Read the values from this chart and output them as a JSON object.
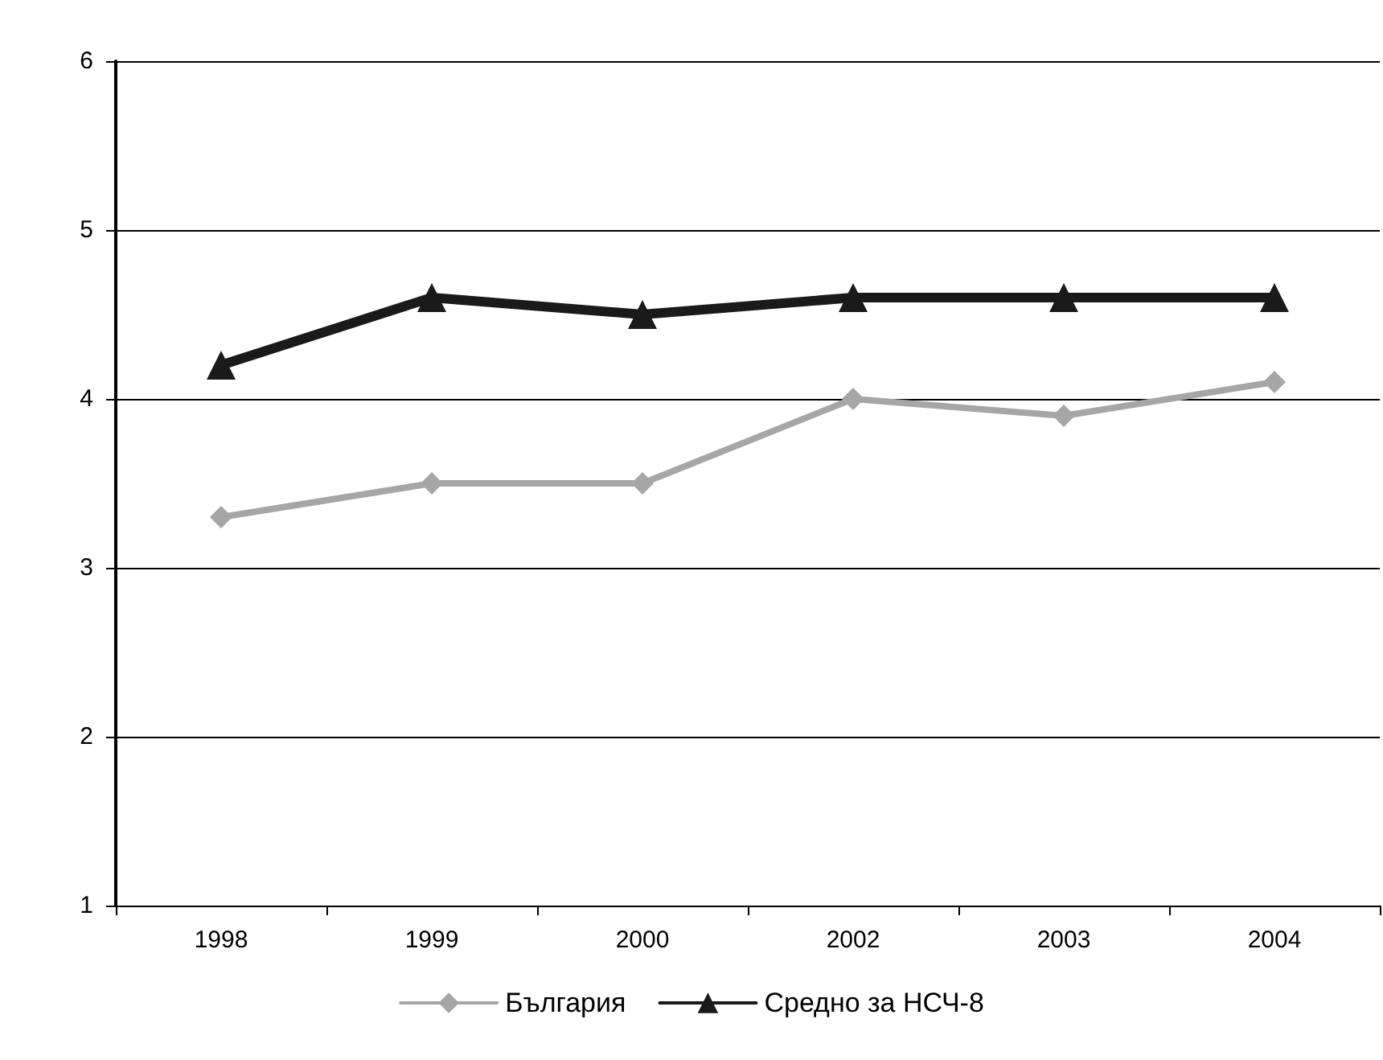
{
  "chart_data": {
    "type": "line",
    "categories": [
      "1998",
      "1999",
      "2000",
      "2002",
      "2003",
      "2004"
    ],
    "series": [
      {
        "name": "България",
        "color": "#a6a6a6",
        "marker": "diamond",
        "values": [
          3.3,
          3.5,
          3.5,
          4.0,
          3.9,
          4.1
        ]
      },
      {
        "name": "Средно за НСЧ-8",
        "color": "#1a1a1a",
        "marker": "triangle",
        "values": [
          4.2,
          4.6,
          4.5,
          4.6,
          4.6,
          4.6
        ]
      }
    ],
    "ylim": [
      1,
      6
    ],
    "yticks": [
      1,
      2,
      3,
      4,
      5,
      6
    ],
    "grid": "y",
    "legend": "bottom",
    "line_style": "solid"
  }
}
